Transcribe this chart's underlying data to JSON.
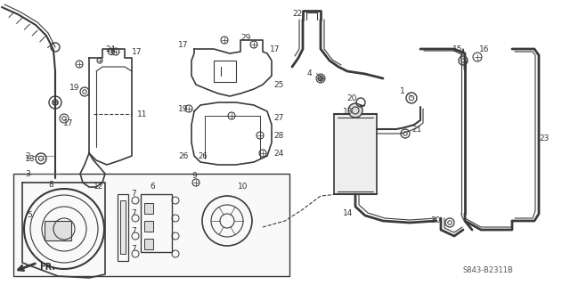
{
  "bg_color": "#ffffff",
  "line_color": "#3a3a3a",
  "text_color": "#333333",
  "diagram_code": "S843-B2311B",
  "figsize": [
    6.4,
    3.2
  ],
  "dpi": 100
}
